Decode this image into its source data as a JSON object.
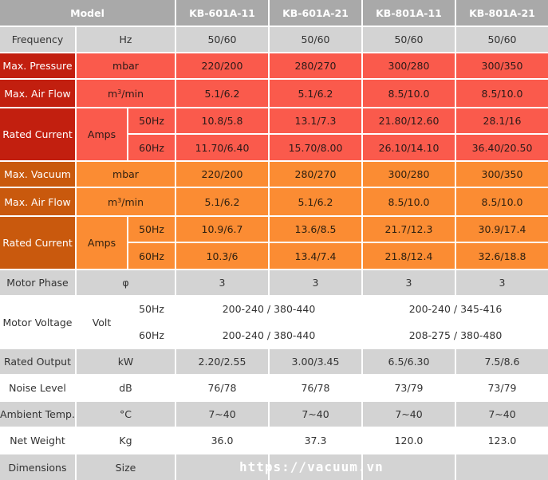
{
  "header": {
    "model_label": "Model",
    "models": [
      "KB-601A-11",
      "KB-601A-21",
      "KB-801A-11",
      "KB-801A-21"
    ]
  },
  "frequency": {
    "label": "Frequency",
    "unit": "Hz",
    "values": [
      "50/60",
      "50/60",
      "50/60",
      "50/60"
    ]
  },
  "pressure_section": {
    "max_pressure": {
      "label": "Max. Pressure",
      "unit": "mbar",
      "values": [
        "220/200",
        "280/270",
        "300/280",
        "300/350"
      ]
    },
    "max_air_flow": {
      "label": "Max. Air Flow",
      "unit_prefix": "m",
      "unit_sup": "3",
      "unit_suffix": "/min",
      "values": [
        "5.1/6.2",
        "5.1/6.2",
        "8.5/10.0",
        "8.5/10.0"
      ]
    },
    "rated_current": {
      "label": "Rated Current",
      "unit": "Amps",
      "hz50": {
        "label": "50Hz",
        "values": [
          "10.8/5.8",
          "13.1/7.3",
          "21.80/12.60",
          "28.1/16"
        ]
      },
      "hz60": {
        "label": "60Hz",
        "values": [
          "11.70/6.40",
          "15.70/8.00",
          "26.10/14.10",
          "36.40/20.50"
        ]
      }
    }
  },
  "vacuum_section": {
    "max_vacuum": {
      "label": "Max. Vacuum",
      "unit": "mbar",
      "values": [
        "220/200",
        "280/270",
        "300/280",
        "300/350"
      ]
    },
    "max_air_flow": {
      "label": "Max. Air Flow",
      "unit_prefix": "m",
      "unit_sup": "3",
      "unit_suffix": "/min",
      "values": [
        "5.1/6.2",
        "5.1/6.2",
        "8.5/10.0",
        "8.5/10.0"
      ]
    },
    "rated_current": {
      "label": "Rated Current",
      "unit": "Amps",
      "hz50": {
        "label": "50Hz",
        "values": [
          "10.9/6.7",
          "13.6/8.5",
          "21.7/12.3",
          "30.9/17.4"
        ]
      },
      "hz60": {
        "label": "60Hz",
        "values": [
          "10.3/6",
          "13.4/7.4",
          "21.8/12.4",
          "32.6/18.8"
        ]
      }
    }
  },
  "motor_phase": {
    "label": "Motor Phase",
    "unit": "φ",
    "values": [
      "3",
      "3",
      "3",
      "3"
    ]
  },
  "motor_voltage": {
    "label": "Motor Voltage",
    "unit": "Volt",
    "hz50": {
      "label": "50Hz",
      "group1": "200-240 / 380-440",
      "group2": "200-240 / 345-416"
    },
    "hz60": {
      "label": "60Hz",
      "group1": "200-240 / 380-440",
      "group2": "208-275 / 380-480"
    }
  },
  "rated_output": {
    "label": "Rated Output",
    "unit": "kW",
    "values": [
      "2.20/2.55",
      "3.00/3.45",
      "6.5/6.30",
      "7.5/8.6"
    ]
  },
  "noise_level": {
    "label": "Noise Level",
    "unit": "dB",
    "values": [
      "76/78",
      "76/78",
      "73/79",
      "73/79"
    ]
  },
  "ambient_temp": {
    "label": "Ambient Temp.",
    "unit": "°C",
    "values": [
      "7~40",
      "7~40",
      "7~40",
      "7~40"
    ]
  },
  "net_weight": {
    "label": "Net Weight",
    "unit": "Kg",
    "values": [
      "36.0",
      "37.3",
      "120.0",
      "123.0"
    ]
  },
  "dimensions": {
    "label": "Dimensions",
    "unit": "Size"
  },
  "watermark": "https://vacuum.vn"
}
